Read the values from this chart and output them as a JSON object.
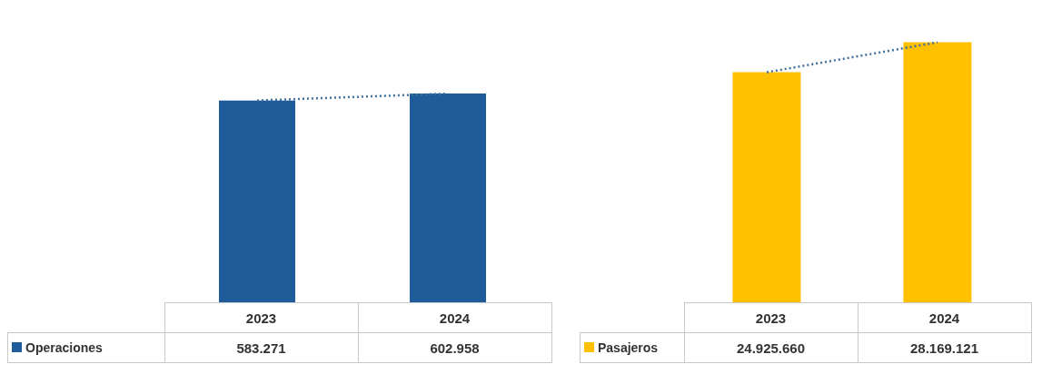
{
  "chart_data": [
    {
      "type": "bar",
      "categories": [
        "2023",
        "2024"
      ],
      "series": [
        {
          "name": "Operaciones",
          "color": "#1f5c99",
          "values": [
            583271,
            602958
          ],
          "value_labels": [
            "583.271",
            "602.958"
          ]
        },
        {
          "type": "line",
          "color": "#41719c",
          "line_style": "dotted",
          "marker": "none",
          "values": [
            583271,
            602958
          ],
          "value_labels": [
            null,
            null
          ]
        }
      ],
      "tick_labels": "x",
      "legend": "bottom"
    },
    {
      "type": "bar",
      "categories": [
        "2023",
        "2024"
      ],
      "series": [
        {
          "name": "Pasajeros",
          "color": "#ffc000",
          "values": [
            24925660,
            28169121
          ],
          "value_labels": [
            "24.925.660",
            "28.169.121"
          ]
        },
        {
          "type": "line",
          "color": "#41719c",
          "line_style": "dotted",
          "marker": "none",
          "values": [
            24925660,
            28169121
          ],
          "value_labels": [
            null,
            null
          ]
        }
      ],
      "tick_labels": "x",
      "legend": "bottom"
    }
  ]
}
